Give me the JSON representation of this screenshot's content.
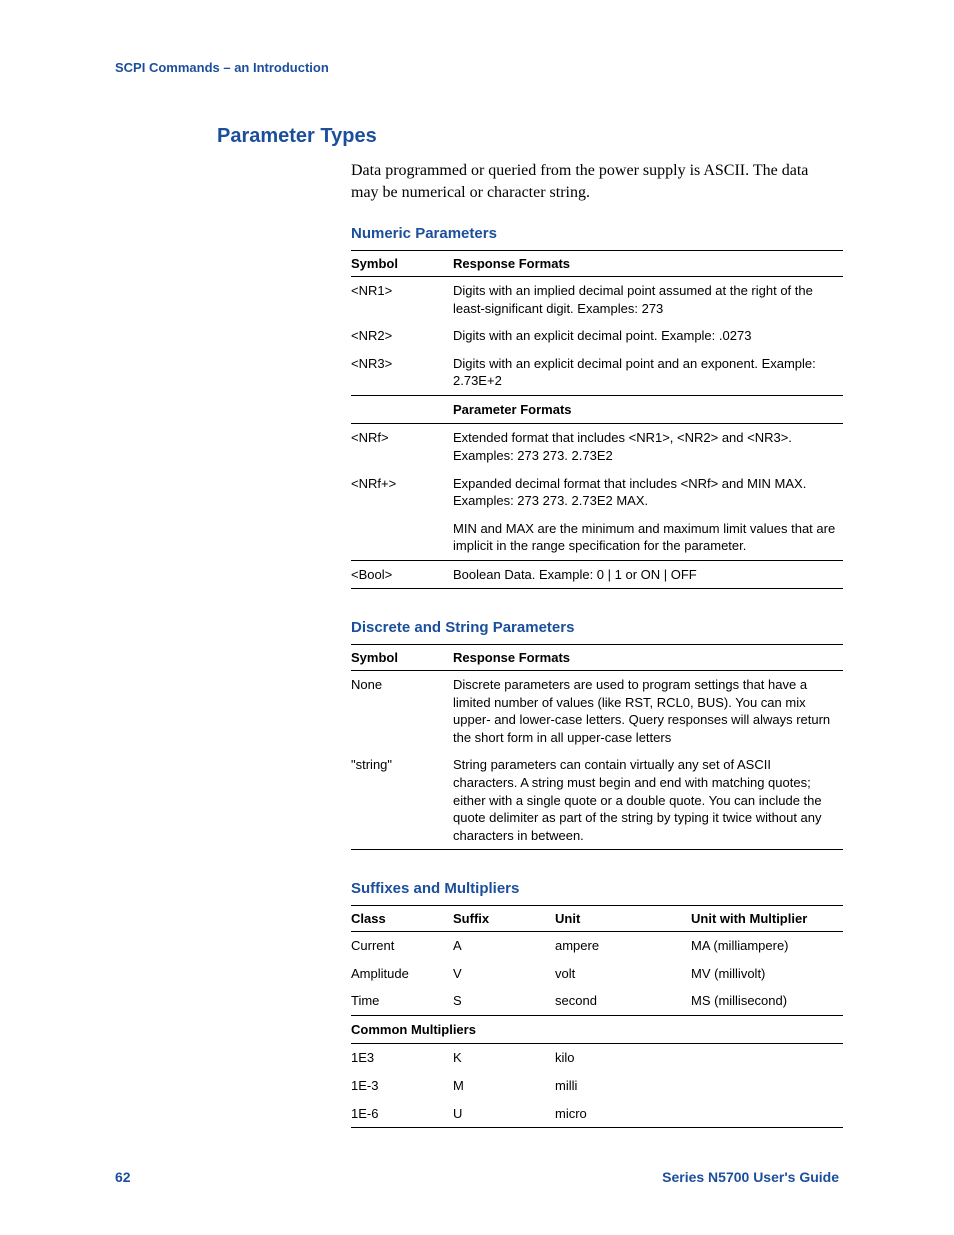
{
  "colors": {
    "accent": "#1b4f9c",
    "text": "#000000",
    "background": "#ffffff",
    "rule": "#000000"
  },
  "running_head": "SCPI Commands – an Introduction",
  "section_title": "Parameter Types",
  "intro": "Data programmed or queried from the power supply is ASCII. The data may be numerical or character string.",
  "numeric": {
    "heading": "Numeric Parameters",
    "th_symbol": "Symbol",
    "th_formats": "Response Formats",
    "rows": [
      {
        "sym": "<NR1>",
        "desc": "Digits with an implied decimal point assumed at the right of the least-significant digit. Examples: 273"
      },
      {
        "sym": "<NR2>",
        "desc": "Digits with an explicit decimal point. Example: .0273"
      },
      {
        "sym": "<NR3>",
        "desc": "Digits with an explicit decimal point and an exponent. Example: 2.73E+2"
      }
    ],
    "subheader": "Parameter Formats",
    "rows2": [
      {
        "sym": "<NRf>",
        "desc": "Extended format that includes <NR1>, <NR2> and <NR3>. Examples: 273    273.   2.73E2"
      },
      {
        "sym": "<NRf+>",
        "desc": "Expanded decimal format that includes <NRf> and MIN MAX. Examples: 273    273.    2.73E2    MAX."
      },
      {
        "sym": "",
        "desc": "MIN and MAX are the minimum and maximum limit values that are implicit in the range specification for the parameter."
      },
      {
        "sym": "<Bool>",
        "desc": "Boolean Data. Example: 0 | 1 or ON | OFF"
      }
    ]
  },
  "discrete": {
    "heading": "Discrete and String Parameters",
    "th_symbol": "Symbol",
    "th_formats": "Response Formats",
    "rows": [
      {
        "sym": "None",
        "desc": "Discrete parameters are used to program settings that have a limited number of values (like RST, RCL0, BUS). You can mix upper- and lower-case letters. Query responses will always return the short form in all upper-case letters"
      },
      {
        "sym": "\"string\"",
        "desc": "String parameters can contain virtually any set of ASCII characters. A string must begin and end with matching quotes; either with a single quote or a double quote. You can include the quote delimiter as part of the string by typing it twice without any characters in between."
      }
    ]
  },
  "suffix": {
    "heading": "Suffixes and Multipliers",
    "th_class": "Class",
    "th_suffix": "Suffix",
    "th_unit": "Unit",
    "th_mult": "Unit with Multiplier",
    "rows": [
      {
        "class": "Current",
        "suffix": "A",
        "unit": "ampere",
        "mult": "MA (milliampere)"
      },
      {
        "class": "Amplitude",
        "suffix": "V",
        "unit": "volt",
        "mult": "MV (millivolt)"
      },
      {
        "class": "Time",
        "suffix": "S",
        "unit": "second",
        "mult": "MS (millisecond)"
      }
    ],
    "subheader": "Common Multipliers",
    "rows2": [
      {
        "class": "1E3",
        "suffix": "K",
        "unit": "kilo",
        "mult": ""
      },
      {
        "class": "1E-3",
        "suffix": "M",
        "unit": "milli",
        "mult": ""
      },
      {
        "class": "1E-6",
        "suffix": "U",
        "unit": "micro",
        "mult": ""
      }
    ]
  },
  "footer": {
    "page": "62",
    "guide": "Series N5700 User's Guide"
  }
}
